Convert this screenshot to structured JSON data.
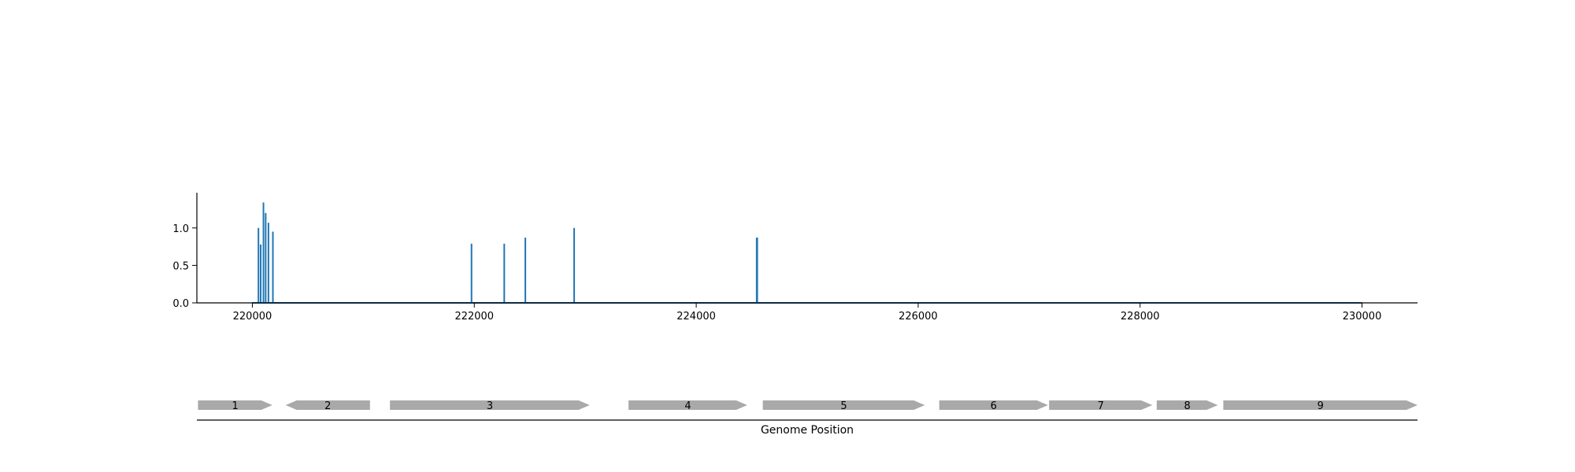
{
  "chart_data": [
    {
      "type": "line",
      "title": "",
      "xlabel": "",
      "ylabel": "",
      "xlim": [
        219500,
        230500
      ],
      "ylim": [
        0,
        1.47
      ],
      "x_ticks": [
        {
          "value": 220000,
          "label": "220000"
        },
        {
          "value": 222000,
          "label": "222000"
        },
        {
          "value": 224000,
          "label": "224000"
        },
        {
          "value": 226000,
          "label": "226000"
        },
        {
          "value": 228000,
          "label": "228000"
        },
        {
          "value": 230000,
          "label": "230000"
        }
      ],
      "y_ticks": [
        {
          "value": 0.0,
          "label": "0.0"
        },
        {
          "value": 0.5,
          "label": "0.5"
        },
        {
          "value": 1.0,
          "label": "1.0"
        }
      ],
      "grid": false,
      "series_color": "#1f77b4",
      "baseline": {
        "x_start": 220000,
        "x_end": 230000,
        "y": 0
      },
      "peaks": [
        {
          "x": 220055,
          "y": 1.0
        },
        {
          "x": 220075,
          "y": 0.78
        },
        {
          "x": 220100,
          "y": 1.34
        },
        {
          "x": 220120,
          "y": 1.2
        },
        {
          "x": 220145,
          "y": 1.07
        },
        {
          "x": 220185,
          "y": 0.95
        },
        {
          "x": 221975,
          "y": 0.79
        },
        {
          "x": 222270,
          "y": 0.79
        },
        {
          "x": 222460,
          "y": 0.87
        },
        {
          "x": 222900,
          "y": 1.0
        },
        {
          "x": 224545,
          "y": 0.87
        },
        {
          "x": 224550,
          "y": 0.87
        }
      ]
    },
    {
      "type": "gene-map",
      "xlabel": "Genome Position",
      "xlim": [
        219500,
        230500
      ],
      "gene_color": "#a9a9a9",
      "genes": [
        {
          "label": "1",
          "start": 219510,
          "end": 220180,
          "strand": "+"
        },
        {
          "label": "2",
          "start": 220300,
          "end": 221060,
          "strand": "-"
        },
        {
          "label": "3",
          "start": 221240,
          "end": 223040,
          "strand": "+"
        },
        {
          "label": "4",
          "start": 223390,
          "end": 224460,
          "strand": "+"
        },
        {
          "label": "5",
          "start": 224600,
          "end": 226060,
          "strand": "+"
        },
        {
          "label": "6",
          "start": 226190,
          "end": 227170,
          "strand": "+"
        },
        {
          "label": "7",
          "start": 227180,
          "end": 228110,
          "strand": "+"
        },
        {
          "label": "8",
          "start": 228150,
          "end": 228700,
          "strand": "+"
        },
        {
          "label": "9",
          "start": 228750,
          "end": 230500,
          "strand": "+"
        }
      ]
    }
  ]
}
